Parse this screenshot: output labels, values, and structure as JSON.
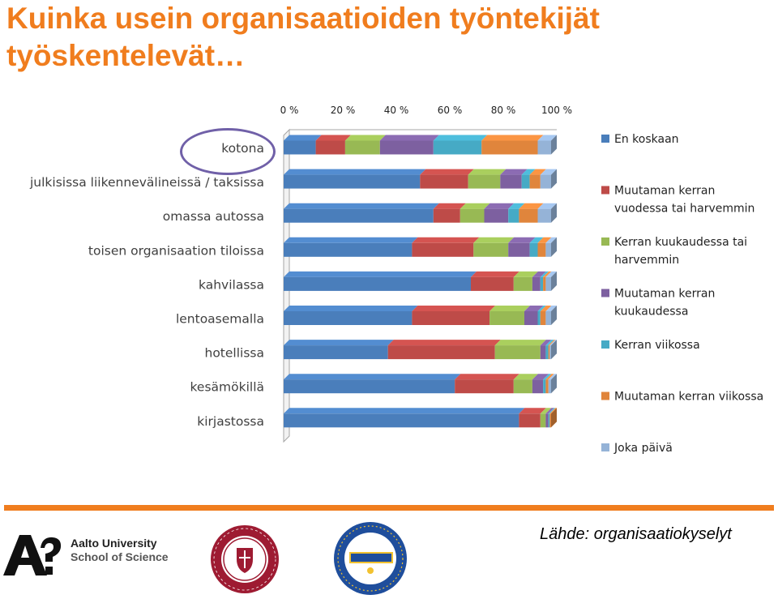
{
  "title": "Kuinka usein organisaatioiden työntekijät työskentelevät…",
  "source": "Lähde: organisaatiokyselyt",
  "logos": {
    "aalto": {
      "line1": "Aalto University",
      "line2": "School of Science"
    },
    "santa_clara": "Santa Clara University 1851 IHS",
    "ucsb": "University of California Santa Barbara Department of Communication Est. 1964"
  },
  "highlight_color": "#7060A8",
  "accent_color": "#F07D1E",
  "chart_data": {
    "type": "bar",
    "orientation": "horizontal",
    "stacked": "percent",
    "style": "3d",
    "title": "",
    "xlabel": "",
    "ylabel": "",
    "xlim": [
      0,
      100
    ],
    "x_ticks": [
      "0 %",
      "20 %",
      "40 %",
      "60 %",
      "80 %",
      "100 %"
    ],
    "grid": false,
    "legend": "right",
    "categories": [
      "kotona",
      "julkisissa liikennevälineissä / taksissa",
      "omassa autossa",
      "toisen organisaation tiloissa",
      "kahvilassa",
      "lentoasemalla",
      "hotellissa",
      "kesämökillä",
      "kirjastossa"
    ],
    "highlighted_category": "kotona",
    "series": [
      {
        "name": "En koskaan",
        "color": "#4A7EBB",
        "values": [
          12,
          51,
          56,
          48,
          70,
          48,
          39,
          64,
          88
        ]
      },
      {
        "name": "Muutaman kerran vuodessa tai harvemmin",
        "color": "#BE4B48",
        "values": [
          11,
          18,
          10,
          23,
          16,
          29,
          40,
          22,
          8
        ]
      },
      {
        "name": "Kerran kuukaudessa tai harvemmin",
        "color": "#98B954",
        "values": [
          13,
          12,
          9,
          13,
          7,
          13,
          17,
          7,
          2
        ]
      },
      {
        "name": "Muutaman kerran kuukaudessa",
        "color": "#7D60A0",
        "values": [
          20,
          8,
          9,
          8,
          3,
          5,
          2,
          4,
          1
        ]
      },
      {
        "name": "Kerran viikossa",
        "color": "#46AAC5",
        "values": [
          18,
          3,
          4,
          3,
          1,
          1,
          1,
          1,
          0.5
        ]
      },
      {
        "name": "Muutaman kerran viikossa",
        "color": "#E0853C",
        "values": [
          21,
          4,
          7,
          3,
          1,
          2,
          0.5,
          1,
          0.5
        ]
      },
      {
        "name": "Joka päivä",
        "color": "#95B3D7",
        "values": [
          5,
          4,
          5,
          2,
          2,
          2,
          0.5,
          1,
          0
        ]
      }
    ]
  }
}
